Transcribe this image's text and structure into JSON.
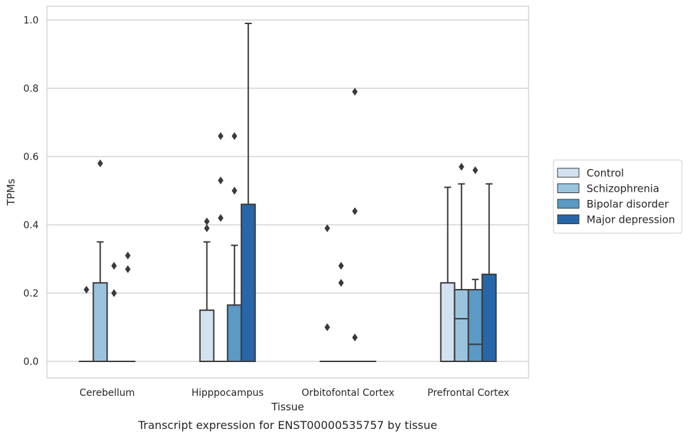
{
  "chart_data": {
    "type": "boxplot",
    "xlabel": "Tissue",
    "ylabel": "TPMs",
    "caption": "Transcript expression for ENST00000535757 by tissue",
    "ylim": [
      -0.05,
      1.04
    ],
    "yticks": [
      0.0,
      0.2,
      0.4,
      0.6,
      0.8,
      1.0
    ],
    "ytick_labels": [
      "0.0",
      "0.2",
      "0.4",
      "0.6",
      "0.8",
      "1.0"
    ],
    "grid": "horizontal",
    "legend_position": "right",
    "categories": [
      "Cerebellum",
      "Hipppocampus",
      "Orbitofontal Cortex",
      "Prefrontal Cortex"
    ],
    "series": [
      {
        "name": "Control",
        "color": "#d2e2f1",
        "boxes": [
          {
            "q1": 0,
            "median": 0,
            "q3": 0,
            "whisker_low": 0,
            "whisker_high": 0,
            "outliers": [
              0.21
            ]
          },
          {
            "q1": 0,
            "median": 0,
            "q3": 0.15,
            "whisker_low": 0,
            "whisker_high": 0.35,
            "outliers": [
              0.39,
              0.41
            ]
          },
          {
            "q1": 0,
            "median": 0,
            "q3": 0,
            "whisker_low": 0,
            "whisker_high": 0,
            "outliers": [
              0.1,
              0.39
            ]
          },
          {
            "q1": 0,
            "median": 0,
            "q3": 0.23,
            "whisker_low": 0,
            "whisker_high": 0.51,
            "outliers": []
          }
        ]
      },
      {
        "name": "Schizophrenia",
        "color": "#9ac4de",
        "boxes": [
          {
            "q1": 0,
            "median": 0,
            "q3": 0.23,
            "whisker_low": 0,
            "whisker_high": 0.35,
            "outliers": [
              0.58
            ]
          },
          {
            "q1": 0,
            "median": 0,
            "q3": 0,
            "whisker_low": 0,
            "whisker_high": 0,
            "outliers": [
              0.42,
              0.53,
              0.66
            ]
          },
          {
            "q1": 0,
            "median": 0,
            "q3": 0,
            "whisker_low": 0,
            "whisker_high": 0,
            "outliers": [
              0.23,
              0.28
            ]
          },
          {
            "q1": 0,
            "median": 0.125,
            "q3": 0.21,
            "whisker_low": 0,
            "whisker_high": 0.52,
            "outliers": [
              0.57
            ]
          }
        ]
      },
      {
        "name": "Bipolar disorder",
        "color": "#5a9ac5",
        "boxes": [
          {
            "q1": 0,
            "median": 0,
            "q3": 0,
            "whisker_low": 0,
            "whisker_high": 0,
            "outliers": [
              0.2,
              0.28
            ]
          },
          {
            "q1": 0,
            "median": 0,
            "q3": 0.165,
            "whisker_low": 0,
            "whisker_high": 0.34,
            "outliers": [
              0.5,
              0.66
            ]
          },
          {
            "q1": 0,
            "median": 0,
            "q3": 0,
            "whisker_low": 0,
            "whisker_high": 0,
            "outliers": [
              0.07,
              0.44,
              0.79
            ]
          },
          {
            "q1": 0,
            "median": 0.05,
            "q3": 0.21,
            "whisker_low": 0,
            "whisker_high": 0.24,
            "outliers": [
              0.56
            ]
          }
        ]
      },
      {
        "name": "Major depression",
        "color": "#2767a9",
        "boxes": [
          {
            "q1": 0,
            "median": 0,
            "q3": 0,
            "whisker_low": 0,
            "whisker_high": 0,
            "outliers": [
              0.27,
              0.31
            ]
          },
          {
            "q1": 0,
            "median": 0,
            "q3": 0.46,
            "whisker_low": 0,
            "whisker_high": 0.99,
            "outliers": []
          },
          {
            "q1": 0,
            "median": 0,
            "q3": 0,
            "whisker_low": 0,
            "whisker_high": 0,
            "outliers": []
          },
          {
            "q1": 0,
            "median": 0,
            "q3": 0.255,
            "whisker_low": 0,
            "whisker_high": 0.52,
            "outliers": []
          }
        ]
      }
    ]
  }
}
